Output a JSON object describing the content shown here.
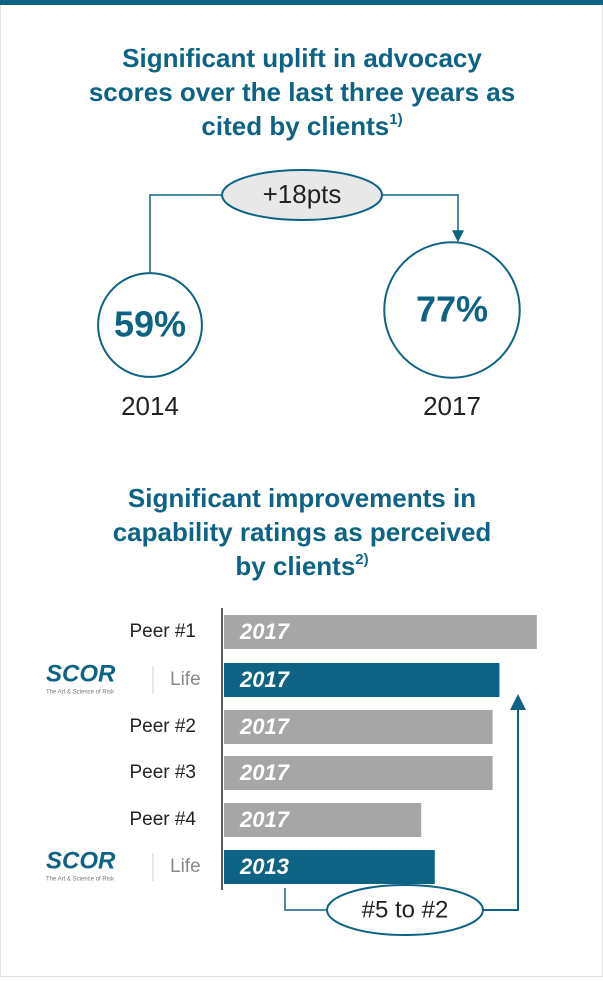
{
  "top": {
    "title": [
      "Significant uplift in advocacy",
      "scores over the last three years as",
      "cited by clients"
    ],
    "footnote": "1)",
    "change": "+18pts",
    "points": [
      {
        "value": 59,
        "label": "59%",
        "year": "2014"
      },
      {
        "value": 77,
        "label": "77%",
        "year": "2017"
      }
    ]
  },
  "logo": {
    "name": "SCOR",
    "tagline": "The Art & Science of Risk",
    "product": "Life"
  },
  "chart_data": {
    "type": "bar",
    "orientation": "horizontal",
    "title": [
      "Significant improvements in",
      "capability ratings as perceived",
      "by clients"
    ],
    "footnote": "2)",
    "categories": [
      "Peer #1",
      null,
      "Peer #2",
      "Peer #3",
      "Peer #4",
      null
    ],
    "bar_labels": [
      "2017",
      "2017",
      "2017",
      "2017",
      "2017",
      "2013"
    ],
    "values": [
      92,
      81,
      79,
      79,
      58,
      62
    ],
    "colors": [
      "#a6a6a6",
      "#0e6384",
      "#a6a6a6",
      "#a6a6a6",
      "#a6a6a6",
      "#0e6384"
    ],
    "xlim": [
      0,
      100
    ],
    "annotation": "#5 to #2"
  }
}
